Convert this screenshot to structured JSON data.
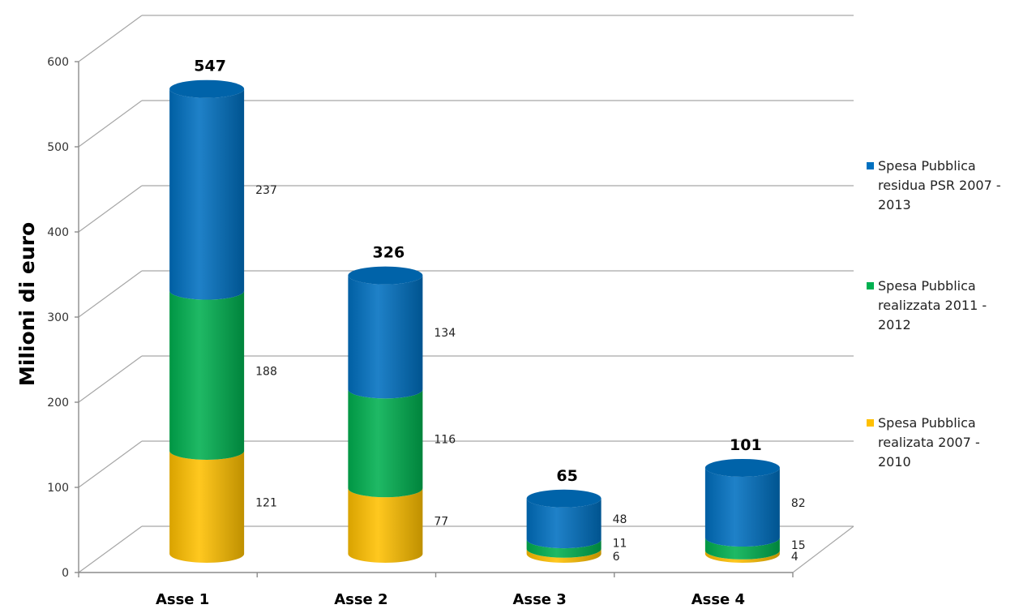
{
  "chart_data": {
    "type": "bar",
    "stacked": true,
    "style": "3d-cylinder",
    "categories": [
      "Asse 1",
      "Asse 2",
      "Asse 3",
      "Asse 4"
    ],
    "series": [
      {
        "name": "Spesa Pubblica realizata 2007 - 2010",
        "values": [
          121,
          77,
          6,
          4
        ],
        "color": "#ffc000"
      },
      {
        "name": "Spesa Pubblica realizzata 2011 - 2012",
        "values": [
          188,
          116,
          11,
          15
        ],
        "color": "#00b050"
      },
      {
        "name": "Spesa Pubblica residua PSR 2007 - 2013",
        "values": [
          237,
          134,
          48,
          82
        ],
        "color": "#0070c0"
      }
    ],
    "totals": [
      "547",
      "326",
      "65",
      "101"
    ],
    "segment_labels": [
      [
        "121",
        "188",
        "237"
      ],
      [
        "77",
        "116",
        "134"
      ],
      [
        "6",
        "11",
        "48"
      ],
      [
        "4",
        "15",
        "82"
      ]
    ],
    "ylabel": "Milioni di euro",
    "ylim": [
      0,
      600
    ],
    "yticks": [
      "0",
      "100",
      "200",
      "300",
      "400",
      "500",
      "600"
    ],
    "legend": {
      "position": "right",
      "entries": [
        {
          "lines": [
            "Spesa Pubblica",
            "residua PSR 2007 -",
            "2013"
          ],
          "color": "#0070c0"
        },
        {
          "lines": [
            "Spesa Pubblica",
            "realizzata 2011 -",
            "2012"
          ],
          "color": "#00b050"
        },
        {
          "lines": [
            "Spesa Pubblica",
            "realizata 2007 -",
            "2010"
          ],
          "color": "#ffc000"
        }
      ]
    },
    "grid": true
  }
}
